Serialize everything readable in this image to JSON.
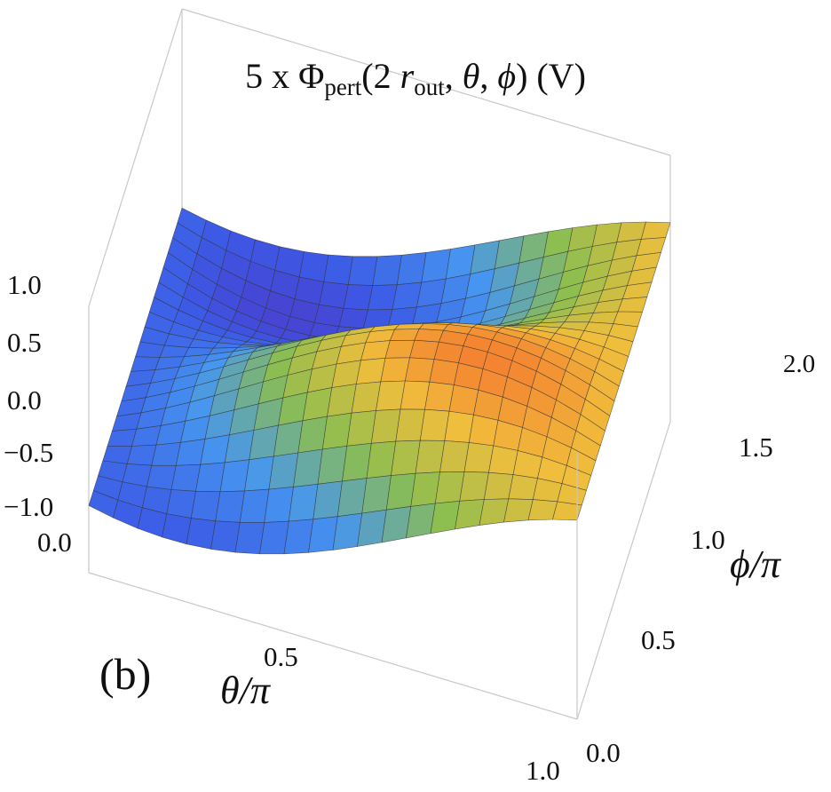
{
  "chart_data": {
    "type": "surface3d",
    "title_parts": {
      "prefix": "5 x ",
      "symbol": "Φ",
      "sub": "pert",
      "open": "(2 ",
      "r": "r",
      "r_sub": "out",
      "theta": "θ",
      "phi": "ϕ",
      "close": ") (V)"
    },
    "x_axis": {
      "label": "θ/π",
      "range": [
        0,
        1
      ],
      "ticks": [
        "0.0",
        "0.5",
        "1.0"
      ]
    },
    "y_axis": {
      "label": "ϕ/π",
      "range": [
        0,
        2
      ],
      "ticks": [
        "0.0",
        "0.5",
        "1.0",
        "1.5",
        "2.0"
      ]
    },
    "z_axis": {
      "label": "",
      "range": [
        -1,
        1
      ],
      "ticks": [
        "1.0",
        "0.5",
        "0.0",
        "−0.5",
        "−1.0"
      ]
    },
    "grid_cells": {
      "theta": 20,
      "phi": 20
    },
    "colormap": "rainbow",
    "panel_label": "(b)"
  }
}
